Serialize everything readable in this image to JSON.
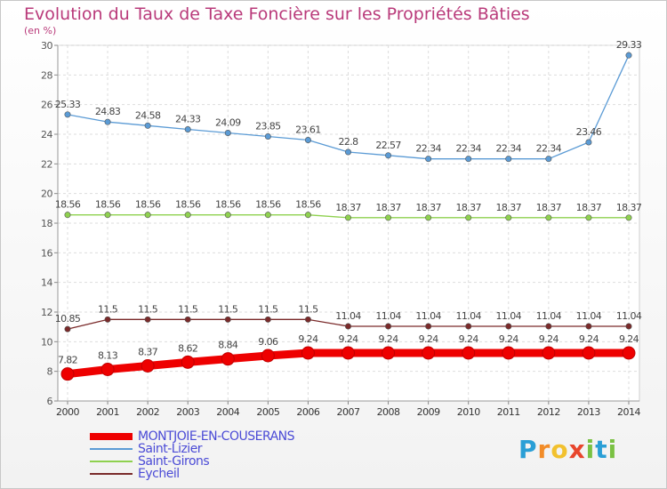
{
  "title": "Evolution du Taux de Taxe Foncière sur les Propriétés Bâties",
  "subtitle": "(en %)",
  "brand": {
    "letters": [
      "P",
      "r",
      "o",
      "x",
      "i",
      "t",
      "i"
    ],
    "colors": [
      "#2a9fd6",
      "#f28c28",
      "#f2c12e",
      "#e8452c",
      "#7ac143",
      "#2a9fd6",
      "#7ac143"
    ]
  },
  "chart_data": {
    "type": "line",
    "x": [
      2000,
      2001,
      2002,
      2003,
      2004,
      2005,
      2006,
      2007,
      2008,
      2009,
      2010,
      2011,
      2012,
      2013,
      2014
    ],
    "ylim": [
      6,
      30
    ],
    "yticks": [
      6,
      8,
      10,
      12,
      14,
      16,
      18,
      20,
      22,
      24,
      26,
      28,
      30
    ],
    "grid": true,
    "legend_position": "bottom-left",
    "series": [
      {
        "name": "MONTJOIE-EN-COUSERANS",
        "color": "#ee0000",
        "style": "thick",
        "values": [
          7.82,
          8.13,
          8.37,
          8.62,
          8.84,
          9.06,
          9.24,
          9.24,
          9.24,
          9.24,
          9.24,
          9.24,
          9.24,
          9.24,
          9.24
        ],
        "labels": [
          "7.82",
          "8.13",
          "8.37",
          "8.62",
          "8.84",
          "9.06",
          "9.24",
          "9.24",
          "9.24",
          "9.24",
          "9.24",
          "9.24",
          "9.24",
          "9.24",
          "9.24"
        ]
      },
      {
        "name": "Saint-Lizier",
        "color": "#5b9bd5",
        "style": "thin",
        "values": [
          25.33,
          24.83,
          24.58,
          24.33,
          24.09,
          23.85,
          23.61,
          22.8,
          22.57,
          22.34,
          22.34,
          22.34,
          22.34,
          23.46,
          29.33
        ],
        "labels": [
          "25.33",
          "24.83",
          "24.58",
          "24.33",
          "24.09",
          "23.85",
          "23.61",
          "22.8",
          "22.57",
          "22.34",
          "22.34",
          "22.34",
          "22.34",
          "23.46",
          "29.33"
        ]
      },
      {
        "name": "Saint-Girons",
        "color": "#8fd14f",
        "style": "thin",
        "values": [
          18.56,
          18.56,
          18.56,
          18.56,
          18.56,
          18.56,
          18.56,
          18.37,
          18.37,
          18.37,
          18.37,
          18.37,
          18.37,
          18.37,
          18.37
        ],
        "labels": [
          "18.56",
          "18.56",
          "18.56",
          "18.56",
          "18.56",
          "18.56",
          "18.56",
          "18.37",
          "18.37",
          "18.37",
          "18.37",
          "18.37",
          "18.37",
          "18.37",
          "18.37"
        ]
      },
      {
        "name": "Eycheil",
        "color": "#7a2a2a",
        "style": "thin",
        "values": [
          10.85,
          11.5,
          11.5,
          11.5,
          11.5,
          11.5,
          11.5,
          11.04,
          11.04,
          11.04,
          11.04,
          11.04,
          11.04,
          11.04,
          11.04
        ],
        "labels": [
          "10.85",
          "11.5",
          "11.5",
          "11.5",
          "11.5",
          "11.5",
          "11.5",
          "11.04",
          "11.04",
          "11.04",
          "11.04",
          "11.04",
          "11.04",
          "11.04",
          "11.04"
        ]
      }
    ]
  }
}
